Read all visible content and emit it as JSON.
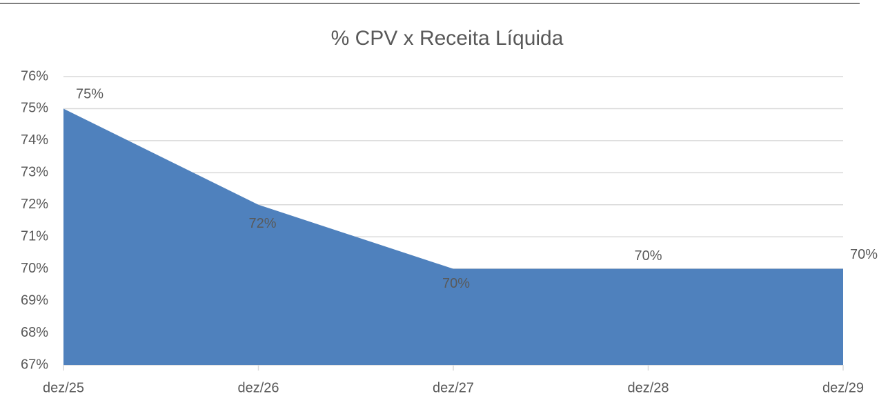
{
  "chart_data": {
    "type": "area",
    "title": "% CPV x Receita Líquida",
    "categories": [
      "dez/25",
      "dez/26",
      "dez/27",
      "dez/28",
      "dez/29"
    ],
    "values": [
      75,
      72,
      70,
      70,
      70
    ],
    "value_labels": [
      "75%",
      "72%",
      "70%",
      "70%",
      "70%"
    ],
    "color": "#4f81bd",
    "ylim": [
      67,
      76
    ],
    "yticks": [
      {
        "value": 67,
        "label": "67%"
      },
      {
        "value": 68,
        "label": "68%"
      },
      {
        "value": 69,
        "label": "69%"
      },
      {
        "value": 70,
        "label": "70%"
      },
      {
        "value": 71,
        "label": "71%"
      },
      {
        "value": 72,
        "label": "72%"
      },
      {
        "value": 73,
        "label": "73%"
      },
      {
        "value": 74,
        "label": "74%"
      },
      {
        "value": 75,
        "label": "75%"
      },
      {
        "value": 76,
        "label": "76%"
      }
    ],
    "grid": true
  }
}
